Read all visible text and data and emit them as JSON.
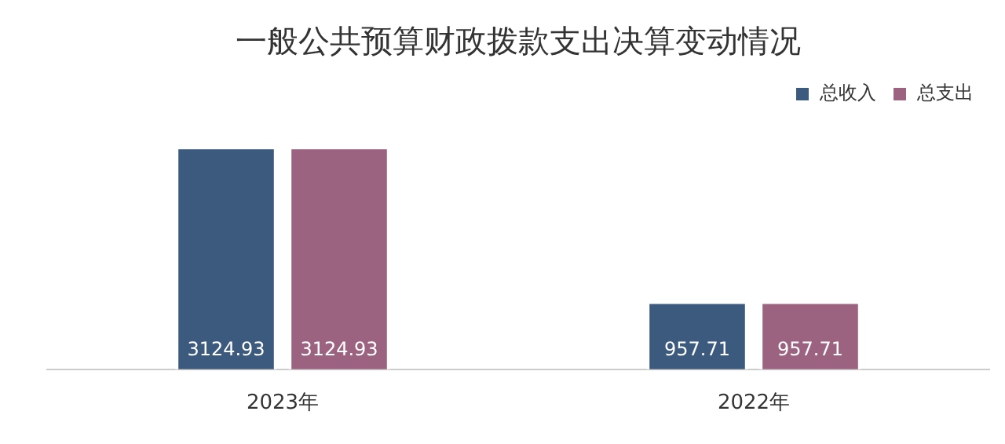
{
  "chart_data": {
    "type": "bar",
    "title": "一般公共预算财政拨款支出决算变动情况",
    "categories": [
      "2023年",
      "2022年"
    ],
    "series": [
      {
        "name": "总收入",
        "color": "#3b5a7e",
        "values": [
          3124.93,
          957.71
        ]
      },
      {
        "name": "总支出",
        "color": "#9b6380",
        "values": [
          3124.93,
          957.71
        ]
      }
    ],
    "data_labels": true,
    "legend": "top right",
    "grid": false
  }
}
